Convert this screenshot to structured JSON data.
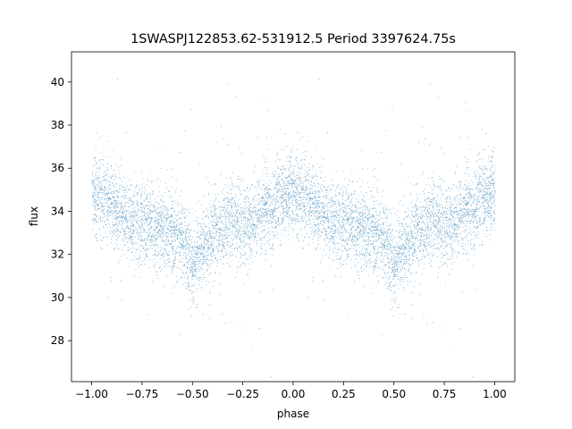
{
  "chart_data": {
    "type": "scatter",
    "title": "1SWASPJ122853.62-531912.5 Period 3397624.75s",
    "xlabel": "phase",
    "ylabel": "flux",
    "xlim": [
      -1.1,
      1.1
    ],
    "ylim": [
      26.1,
      41.4
    ],
    "xticks": [
      -1.0,
      -0.75,
      -0.5,
      -0.25,
      0.0,
      0.25,
      0.5,
      0.75,
      1.0
    ],
    "xtick_labels": [
      "−1.00",
      "−0.75",
      "−0.50",
      "−0.25",
      "0.00",
      "0.25",
      "0.50",
      "0.75",
      "1.00"
    ],
    "yticks": [
      28,
      30,
      32,
      34,
      36,
      38,
      40
    ],
    "ytick_labels": [
      "28",
      "30",
      "32",
      "34",
      "36",
      "38",
      "40"
    ],
    "grid": false,
    "legend": "none",
    "marker_color": "#1f77b4",
    "series": [
      {
        "phase_folded": true,
        "mirror_period": 1.0,
        "trend_phase": [
          0.0,
          0.05,
          0.1,
          0.15,
          0.2,
          0.25,
          0.3,
          0.35,
          0.4,
          0.45,
          0.5,
          0.55,
          0.6,
          0.65,
          0.7,
          0.75,
          0.8,
          0.85,
          0.9,
          0.95,
          1.0
        ],
        "trend_flux": [
          34.8,
          34.6,
          34.2,
          33.9,
          33.6,
          33.4,
          33.3,
          33.1,
          33.0,
          32.6,
          31.6,
          32.2,
          32.9,
          33.3,
          33.6,
          33.4,
          33.5,
          34.0,
          34.3,
          34.6,
          34.8
        ],
        "scatter_sigma": 0.9,
        "n_points_per_period": 7000
      }
    ]
  }
}
